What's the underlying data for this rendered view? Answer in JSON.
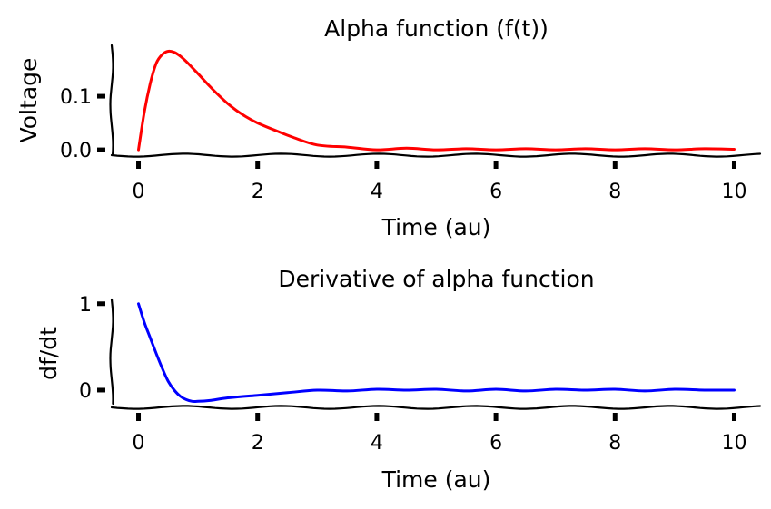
{
  "chart_data": [
    {
      "type": "line",
      "title": "Alpha function (f(t))",
      "xlabel": "Time (au)",
      "ylabel": "Voltage",
      "xlim": [
        -0.45,
        10.45
      ],
      "ylim": [
        -0.01,
        0.195
      ],
      "xticks": [
        0,
        2,
        4,
        6,
        8,
        10
      ],
      "xtick_labels": [
        "0",
        "2",
        "4",
        "6",
        "8",
        "10"
      ],
      "yticks": [
        0.0,
        0.1
      ],
      "ytick_labels": [
        "0.0",
        "0.1"
      ],
      "grid": false,
      "series": [
        {
          "color": "#ff0000",
          "x": [
            0,
            0.1,
            0.2,
            0.3,
            0.4,
            0.5,
            0.6,
            0.7,
            0.8,
            1.0,
            1.2,
            1.4,
            1.6,
            1.8,
            2.0,
            2.3,
            2.6,
            3.0,
            3.5,
            4.0,
            4.5,
            5.0,
            5.5,
            6.0,
            6.5,
            7.0,
            7.5,
            8.0,
            8.5,
            9.0,
            9.5,
            10.0
          ],
          "y": [
            0.0,
            0.072,
            0.125,
            0.162,
            0.178,
            0.184,
            0.182,
            0.175,
            0.165,
            0.142,
            0.118,
            0.096,
            0.077,
            0.062,
            0.05,
            0.036,
            0.023,
            0.009,
            0.005,
            0.0,
            0.003,
            0.0,
            0.002,
            0.0,
            0.002,
            0.0,
            0.002,
            0.0,
            0.002,
            0.0,
            0.002,
            0.001
          ]
        }
      ]
    },
    {
      "type": "line",
      "title": "Derivative of alpha function",
      "xlabel": "Time (au)",
      "ylabel": "df/dt",
      "xlim": [
        -0.45,
        10.45
      ],
      "ylim": [
        -0.2,
        1.05
      ],
      "xticks": [
        0,
        2,
        4,
        6,
        8,
        10
      ],
      "xtick_labels": [
        "0",
        "2",
        "4",
        "6",
        "8",
        "10"
      ],
      "yticks": [
        0,
        1
      ],
      "ytick_labels": [
        "0",
        "1"
      ],
      "grid": false,
      "series": [
        {
          "color": "#0000ff",
          "x": [
            0,
            0.1,
            0.2,
            0.3,
            0.4,
            0.5,
            0.6,
            0.7,
            0.8,
            0.9,
            1.0,
            1.2,
            1.5,
            2.0,
            2.5,
            3.0,
            3.5,
            4.0,
            4.5,
            5.0,
            5.5,
            6.0,
            6.5,
            7.0,
            7.5,
            8.0,
            8.5,
            9.0,
            9.5,
            10.0
          ],
          "y": [
            1.0,
            0.78,
            0.6,
            0.42,
            0.25,
            0.1,
            0.0,
            -0.07,
            -0.11,
            -0.13,
            -0.13,
            -0.12,
            -0.09,
            -0.06,
            -0.03,
            0.0,
            -0.01,
            0.01,
            0.0,
            0.01,
            -0.01,
            0.01,
            -0.01,
            0.01,
            0.0,
            0.01,
            -0.01,
            0.01,
            0.0,
            0.0
          ]
        }
      ]
    }
  ]
}
